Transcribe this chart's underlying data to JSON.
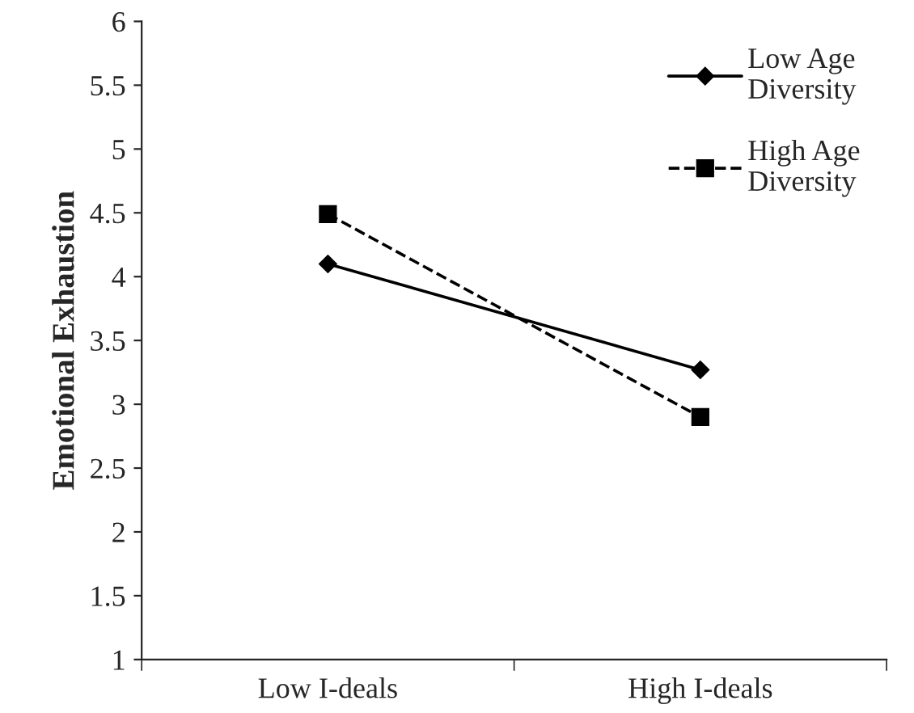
{
  "chart_data": {
    "type": "line",
    "ylabel": "Emotional Exhaustion",
    "categories": [
      "Low I-deals",
      "High I-deals"
    ],
    "series": [
      {
        "name": "Low Age\nDiversity",
        "color": "#000000",
        "values": [
          4.1,
          3.27
        ],
        "marker": "diamond",
        "line_style": "solid"
      },
      {
        "name": "High Age\nDiversity",
        "color": "#000000",
        "values": [
          4.49,
          2.9
        ],
        "marker": "square",
        "line_style": "dashed"
      }
    ],
    "ylim": [
      1,
      6
    ],
    "yticks": [
      1,
      1.5,
      2,
      2.5,
      3,
      3.5,
      4,
      4.5,
      5,
      5.5,
      6
    ],
    "grid": false,
    "legend": "top right"
  }
}
